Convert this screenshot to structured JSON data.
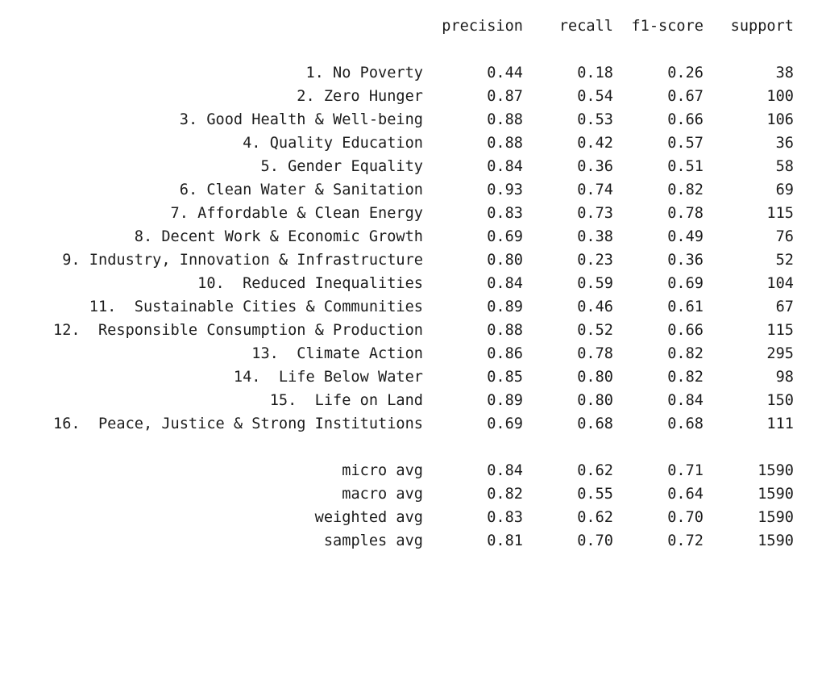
{
  "report": {
    "headers": [
      "precision",
      "recall",
      "f1-score",
      "support"
    ],
    "classes": [
      {
        "label": "1. No Poverty",
        "precision": "0.44",
        "recall": "0.18",
        "f1": "0.26",
        "support": "38"
      },
      {
        "label": "2. Zero Hunger",
        "precision": "0.87",
        "recall": "0.54",
        "f1": "0.67",
        "support": "100"
      },
      {
        "label": "3. Good Health & Well-being",
        "precision": "0.88",
        "recall": "0.53",
        "f1": "0.66",
        "support": "106"
      },
      {
        "label": "4. Quality Education",
        "precision": "0.88",
        "recall": "0.42",
        "f1": "0.57",
        "support": "36"
      },
      {
        "label": "5. Gender Equality",
        "precision": "0.84",
        "recall": "0.36",
        "f1": "0.51",
        "support": "58"
      },
      {
        "label": "6. Clean Water & Sanitation",
        "precision": "0.93",
        "recall": "0.74",
        "f1": "0.82",
        "support": "69"
      },
      {
        "label": "7. Affordable & Clean Energy",
        "precision": "0.83",
        "recall": "0.73",
        "f1": "0.78",
        "support": "115"
      },
      {
        "label": "8. Decent Work & Economic Growth",
        "precision": "0.69",
        "recall": "0.38",
        "f1": "0.49",
        "support": "76"
      },
      {
        "label": "9. Industry, Innovation & Infrastructure",
        "precision": "0.80",
        "recall": "0.23",
        "f1": "0.36",
        "support": "52"
      },
      {
        "label": "10.  Reduced Inequalities",
        "precision": "0.84",
        "recall": "0.59",
        "f1": "0.69",
        "support": "104"
      },
      {
        "label": "11.  Sustainable Cities & Communities",
        "precision": "0.89",
        "recall": "0.46",
        "f1": "0.61",
        "support": "67"
      },
      {
        "label": "12.  Responsible Consumption & Production",
        "precision": "0.88",
        "recall": "0.52",
        "f1": "0.66",
        "support": "115"
      },
      {
        "label": "13.  Climate Action",
        "precision": "0.86",
        "recall": "0.78",
        "f1": "0.82",
        "support": "295"
      },
      {
        "label": "14.  Life Below Water",
        "precision": "0.85",
        "recall": "0.80",
        "f1": "0.82",
        "support": "98"
      },
      {
        "label": "15.  Life on Land",
        "precision": "0.89",
        "recall": "0.80",
        "f1": "0.84",
        "support": "150"
      },
      {
        "label": "16.  Peace, Justice & Strong Institutions",
        "precision": "0.69",
        "recall": "0.68",
        "f1": "0.68",
        "support": "111"
      }
    ],
    "averages": [
      {
        "label": "micro avg",
        "precision": "0.84",
        "recall": "0.62",
        "f1": "0.71",
        "support": "1590"
      },
      {
        "label": "macro avg",
        "precision": "0.82",
        "recall": "0.55",
        "f1": "0.64",
        "support": "1590"
      },
      {
        "label": "weighted avg",
        "precision": "0.83",
        "recall": "0.62",
        "f1": "0.70",
        "support": "1590"
      },
      {
        "label": "samples avg",
        "precision": "0.81",
        "recall": "0.70",
        "f1": "0.72",
        "support": "1590"
      }
    ]
  },
  "colors": {
    "text": "#1c1c1c",
    "background": "#ffffff"
  }
}
